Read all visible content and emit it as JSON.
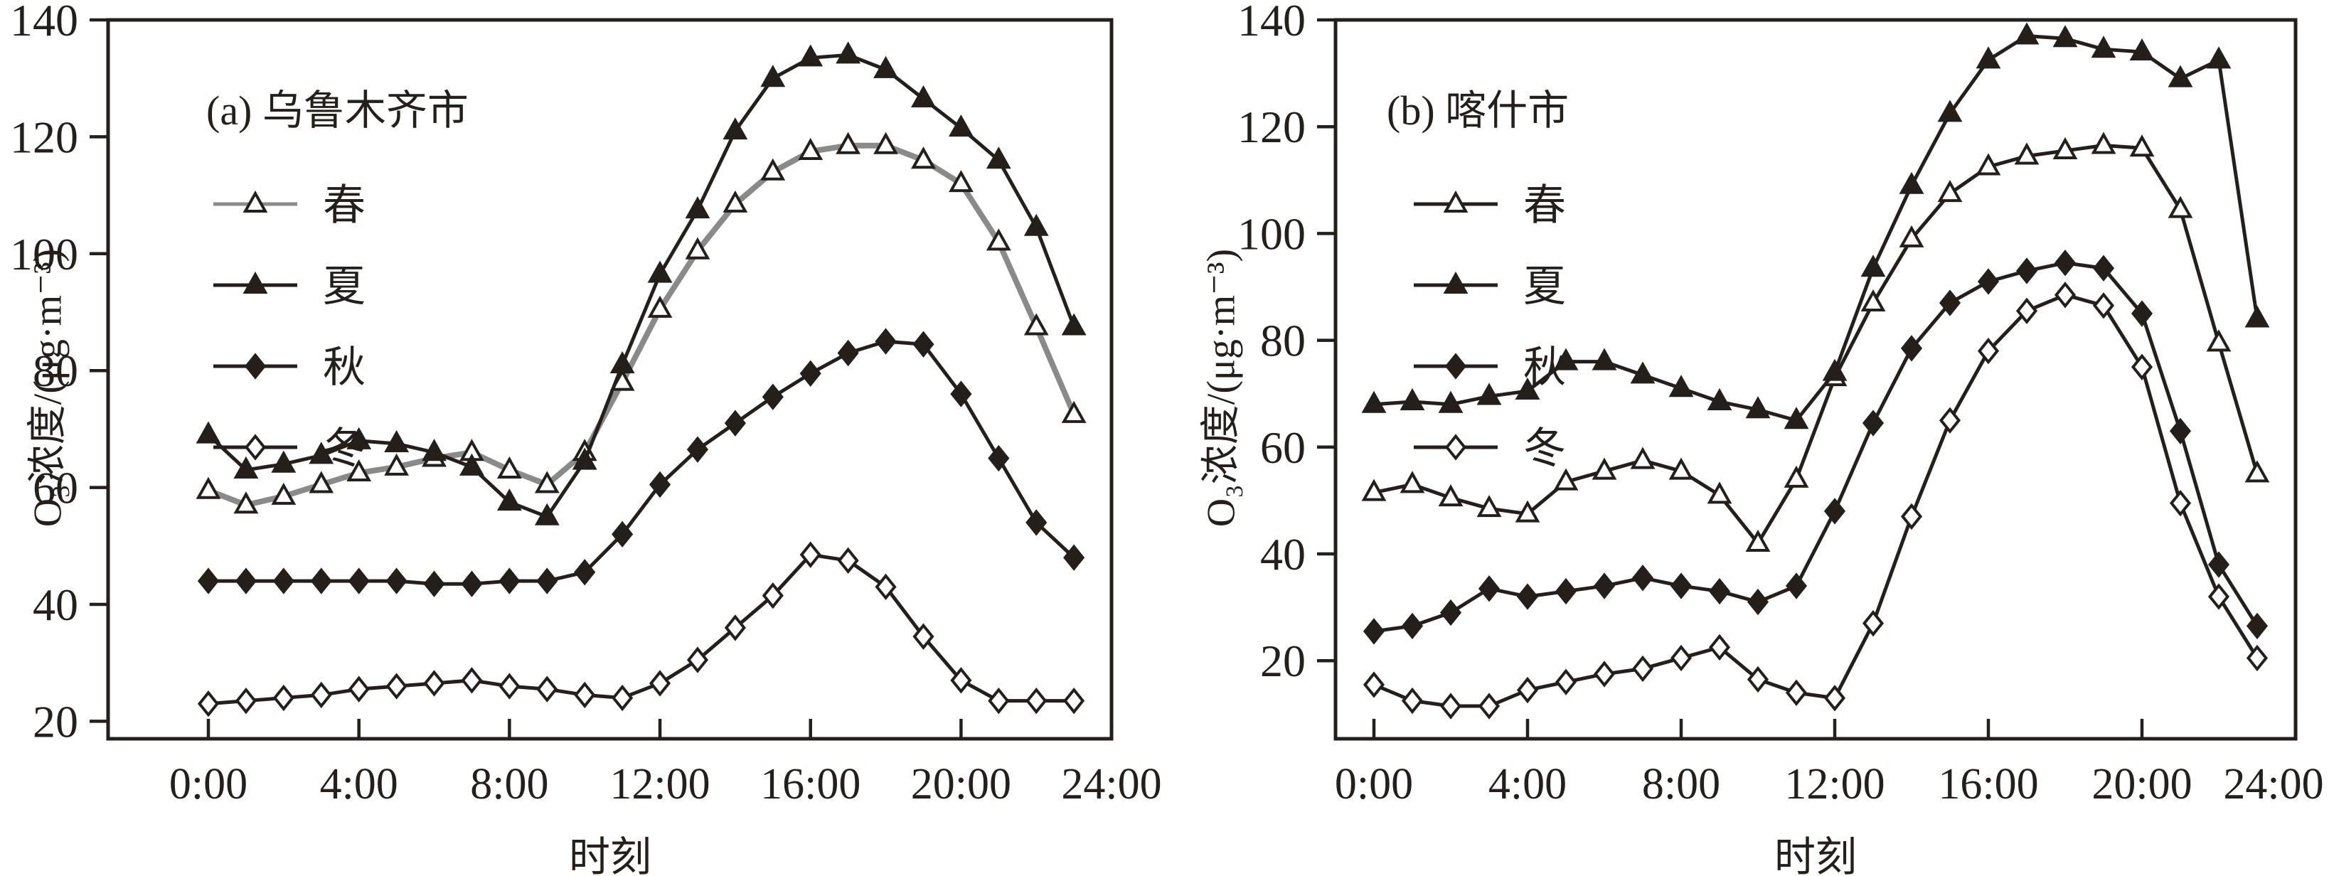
{
  "figure": {
    "background": "#ffffff",
    "ink_color": "#241f1a",
    "spring_line_gray": "#8a8a8a",
    "description": "Diurnal O3 concentration by season for two cities"
  },
  "chart_data": [
    {
      "type": "line",
      "panel_label": "(a)",
      "city": "乌鲁木齐市",
      "title": "(a) 乌鲁木齐市",
      "xlabel": "时刻",
      "ylabel": "O₃浓度/(μg·m⁻³)",
      "x_tick_labels": [
        "0:00",
        "4:00",
        "8:00",
        "12:00",
        "16:00",
        "20:00",
        "24:00"
      ],
      "y_ticks": [
        20,
        40,
        60,
        80,
        100,
        120,
        140
      ],
      "ylim": [
        20,
        140
      ],
      "x_hours": [
        0,
        1,
        2,
        3,
        4,
        5,
        6,
        7,
        8,
        9,
        10,
        11,
        12,
        13,
        14,
        15,
        16,
        17,
        18,
        19,
        20,
        21,
        22,
        23
      ],
      "grid": false,
      "legend_position": "upper-left",
      "legend_labels": [
        "春",
        "夏",
        "秋",
        "冬"
      ],
      "series": [
        {
          "name": "春",
          "marker": "open-triangle",
          "line_color": "#8a8a8a",
          "line_width": 8,
          "values": [
            59.5,
            57,
            58.5,
            60.5,
            62.5,
            63.5,
            65,
            66,
            63,
            60.5,
            66,
            78,
            90.5,
            100.5,
            108.5,
            114,
            117.5,
            118.5,
            118.5,
            116,
            112,
            102,
            87.5,
            72.5
          ]
        },
        {
          "name": "夏",
          "marker": "filled-triangle",
          "line_color": "#241f1a",
          "line_width": 5,
          "values": [
            69,
            63,
            64,
            65.5,
            68,
            67.5,
            66,
            63.5,
            57.5,
            55,
            64.5,
            81,
            96.5,
            107.5,
            121,
            130,
            133.5,
            134,
            131.5,
            126.5,
            121.5,
            116,
            104.5,
            87.5
          ]
        },
        {
          "name": "秋",
          "marker": "filled-diamond",
          "line_color": "#241f1a",
          "line_width": 5,
          "values": [
            44,
            44,
            44,
            44,
            44,
            44,
            43.5,
            43.5,
            44,
            44,
            45.5,
            52,
            60.5,
            66.5,
            71,
            75.5,
            79.5,
            83,
            85,
            84.5,
            76,
            65,
            54,
            48
          ]
        },
        {
          "name": "冬",
          "marker": "open-diamond",
          "line_color": "#241f1a",
          "line_width": 5,
          "values": [
            23,
            23.5,
            24,
            24.5,
            25.5,
            26,
            26.5,
            27,
            26,
            25.5,
            24.5,
            24,
            26.5,
            30.5,
            36,
            41.5,
            48.5,
            47.5,
            43,
            34.5,
            27,
            23.5,
            23.5,
            23.5
          ]
        }
      ]
    },
    {
      "type": "line",
      "panel_label": "(b)",
      "city": "喀什市",
      "title": "(b) 喀什市",
      "xlabel": "时刻",
      "ylabel": "O₃浓度/(μg·m⁻³)",
      "x_tick_labels": [
        "0:00",
        "4:00",
        "8:00",
        "12:00",
        "16:00",
        "20:00",
        "24:00"
      ],
      "y_ticks": [
        20,
        40,
        60,
        80,
        100,
        120,
        140
      ],
      "ylim": [
        20,
        140
      ],
      "x_hours": [
        0,
        1,
        2,
        3,
        4,
        5,
        6,
        7,
        8,
        9,
        10,
        11,
        12,
        13,
        14,
        15,
        16,
        17,
        18,
        19,
        20,
        21,
        22,
        23
      ],
      "grid": false,
      "legend_position": "upper-left",
      "legend_labels": [
        "春",
        "夏",
        "秋",
        "冬"
      ],
      "series": [
        {
          "name": "春",
          "marker": "open-triangle",
          "line_color": "#241f1a",
          "line_width": 5,
          "values": [
            51.5,
            53,
            50.5,
            48.5,
            47.5,
            53.5,
            55.5,
            57.5,
            55.5,
            51,
            42,
            54,
            73,
            87,
            99,
            107.5,
            112.5,
            114.5,
            115.5,
            116.5,
            116,
            104.5,
            79.5,
            55
          ]
        },
        {
          "name": "夏",
          "marker": "filled-triangle",
          "line_color": "#241f1a",
          "line_width": 5,
          "values": [
            68,
            68.5,
            68,
            69.5,
            70.5,
            76,
            76,
            73.5,
            71,
            68.5,
            67,
            65,
            74,
            93.5,
            109,
            122.5,
            132.5,
            137,
            136.5,
            134.5,
            134,
            129,
            132.5,
            84
          ]
        },
        {
          "name": "秋",
          "marker": "filled-diamond",
          "line_color": "#241f1a",
          "line_width": 5,
          "values": [
            25.5,
            26.5,
            29,
            33.5,
            32,
            33,
            34,
            35.5,
            34,
            33,
            31,
            34,
            48,
            64.5,
            78.5,
            87,
            91,
            93,
            94.5,
            93.5,
            85,
            63,
            38,
            26.5
          ]
        },
        {
          "name": "冬",
          "marker": "open-diamond",
          "line_color": "#241f1a",
          "line_width": 5,
          "values": [
            15.5,
            12.5,
            11.5,
            11.5,
            14.5,
            16,
            17.5,
            18.5,
            20.5,
            22.5,
            16.5,
            14,
            13,
            27,
            47,
            65,
            78,
            85.5,
            88.5,
            86.5,
            75,
            49.5,
            32,
            20.5
          ]
        }
      ]
    }
  ]
}
